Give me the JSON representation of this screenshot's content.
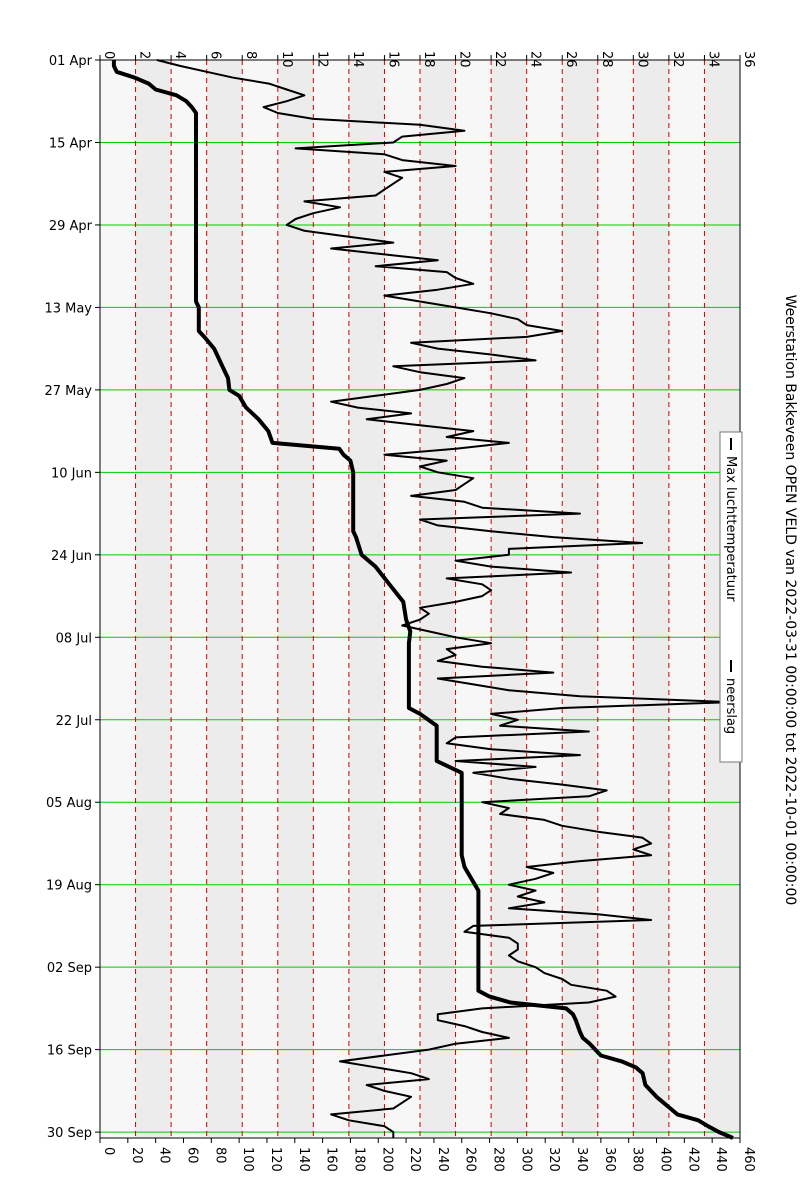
{
  "chart_data": {
    "type": "line",
    "title": "Weerstation Bakkeveen OPEN VELD van 2022-03-31 00:00:00 tot 2022-10-01 00:00:00",
    "orientation": "rotated-90-clockwise",
    "x_axis": {
      "kind": "date",
      "range": [
        "2022-04-01",
        "2022-10-01"
      ],
      "tick_labels": [
        "01 Apr",
        "15 Apr",
        "29 Apr",
        "13 May",
        "27 May",
        "10 Jun",
        "24 Jun",
        "08 Jul",
        "22 Jul",
        "05 Aug",
        "19 Aug",
        "02 Sep",
        "16 Sep",
        "30 Sep"
      ],
      "tick_dates": [
        "2022-04-01",
        "2022-04-15",
        "2022-04-29",
        "2022-05-13",
        "2022-05-27",
        "2022-06-10",
        "2022-06-24",
        "2022-07-08",
        "2022-07-22",
        "2022-08-05",
        "2022-08-19",
        "2022-09-02",
        "2022-09-16",
        "2022-09-30"
      ],
      "grid": true,
      "grid_color": "#00cc00"
    },
    "y_axis_temperature": {
      "range": [
        0,
        36
      ],
      "ticks": [
        0,
        2,
        4,
        6,
        8,
        10,
        12,
        14,
        16,
        18,
        20,
        22,
        24,
        26,
        28,
        30,
        32,
        34,
        36
      ],
      "grid": true,
      "grid_color": "#cc0000",
      "grid_style": "dashed"
    },
    "y_axis_precipitation": {
      "range": [
        0,
        460
      ],
      "ticks": [
        0,
        20,
        40,
        60,
        80,
        100,
        120,
        140,
        160,
        180,
        200,
        220,
        240,
        260,
        280,
        300,
        320,
        340,
        360,
        380,
        400,
        420,
        440,
        460
      ]
    },
    "legend": {
      "placement": "top-right",
      "entries": [
        "Max luchttemperatuur",
        "neerslag"
      ]
    },
    "series": [
      {
        "name": "Max luchttemperatuur",
        "axis": "temperature",
        "color": "#000000",
        "points": [
          [
            "2022-04-01",
            3.2
          ],
          [
            "2022-04-02",
            4.5
          ],
          [
            "2022-04-03",
            6.0
          ],
          [
            "2022-04-04",
            7.5
          ],
          [
            "2022-04-05",
            9.5
          ],
          [
            "2022-04-06",
            10.5
          ],
          [
            "2022-04-07",
            11.5
          ],
          [
            "2022-04-08",
            10.5
          ],
          [
            "2022-04-09",
            9.2
          ],
          [
            "2022-04-10",
            10.0
          ],
          [
            "2022-04-11",
            12.0
          ],
          [
            "2022-04-12",
            18.0
          ],
          [
            "2022-04-13",
            20.5
          ],
          [
            "2022-04-14",
            17.0
          ],
          [
            "2022-04-15",
            16.5
          ],
          [
            "2022-04-16",
            11.0
          ],
          [
            "2022-04-17",
            16.0
          ],
          [
            "2022-04-18",
            17.0
          ],
          [
            "2022-04-19",
            20.0
          ],
          [
            "2022-04-20",
            16.0
          ],
          [
            "2022-04-21",
            17.0
          ],
          [
            "2022-04-22",
            16.5
          ],
          [
            "2022-04-23",
            16.0
          ],
          [
            "2022-04-24",
            15.5
          ],
          [
            "2022-04-25",
            11.5
          ],
          [
            "2022-04-26",
            13.5
          ],
          [
            "2022-04-27",
            12.0
          ],
          [
            "2022-04-28",
            11.0
          ],
          [
            "2022-04-29",
            10.5
          ],
          [
            "2022-04-30",
            11.5
          ],
          [
            "2022-05-01",
            14.0
          ],
          [
            "2022-05-02",
            16.5
          ],
          [
            "2022-05-03",
            13.0
          ],
          [
            "2022-05-04",
            16.0
          ],
          [
            "2022-05-05",
            19.0
          ],
          [
            "2022-05-06",
            15.5
          ],
          [
            "2022-05-07",
            19.5
          ],
          [
            "2022-05-08",
            20.0
          ],
          [
            "2022-05-09",
            21.0
          ],
          [
            "2022-05-10",
            19.0
          ],
          [
            "2022-05-11",
            16.0
          ],
          [
            "2022-05-12",
            18.0
          ],
          [
            "2022-05-13",
            20.0
          ],
          [
            "2022-05-14",
            22.0
          ],
          [
            "2022-05-15",
            23.5
          ],
          [
            "2022-05-16",
            24.0
          ],
          [
            "2022-05-17",
            26.0
          ],
          [
            "2022-05-18",
            24.0
          ],
          [
            "2022-05-19",
            17.5
          ],
          [
            "2022-05-20",
            19.0
          ],
          [
            "2022-05-21",
            22.0
          ],
          [
            "2022-05-22",
            24.5
          ],
          [
            "2022-05-23",
            16.5
          ],
          [
            "2022-05-24",
            18.0
          ],
          [
            "2022-05-25",
            20.5
          ],
          [
            "2022-05-26",
            19.5
          ],
          [
            "2022-05-27",
            18.0
          ],
          [
            "2022-05-28",
            15.5
          ],
          [
            "2022-05-29",
            13.0
          ],
          [
            "2022-05-30",
            14.5
          ],
          [
            "2022-05-31",
            17.5
          ],
          [
            "2022-06-01",
            15.0
          ],
          [
            "2022-06-02",
            18.0
          ],
          [
            "2022-06-03",
            21.0
          ],
          [
            "2022-06-04",
            19.5
          ],
          [
            "2022-06-05",
            23.0
          ],
          [
            "2022-06-06",
            20.0
          ],
          [
            "2022-06-07",
            16.0
          ],
          [
            "2022-06-08",
            19.5
          ],
          [
            "2022-06-09",
            18.0
          ],
          [
            "2022-06-10",
            19.0
          ],
          [
            "2022-06-11",
            21.0
          ],
          [
            "2022-06-12",
            20.5
          ],
          [
            "2022-06-13",
            20.0
          ],
          [
            "2022-06-14",
            17.5
          ],
          [
            "2022-06-15",
            20.5
          ],
          [
            "2022-06-16",
            21.5
          ],
          [
            "2022-06-17",
            27.0
          ],
          [
            "2022-06-18",
            18.0
          ],
          [
            "2022-06-19",
            19.0
          ],
          [
            "2022-06-20",
            22.0
          ],
          [
            "2022-06-21",
            25.5
          ],
          [
            "2022-06-22",
            30.5
          ],
          [
            "2022-06-23",
            23.0
          ],
          [
            "2022-06-24",
            23.0
          ],
          [
            "2022-06-25",
            20.0
          ],
          [
            "2022-06-26",
            22.0
          ],
          [
            "2022-06-27",
            26.5
          ],
          [
            "2022-06-28",
            19.5
          ],
          [
            "2022-06-29",
            21.5
          ],
          [
            "2022-06-30",
            22.0
          ],
          [
            "2022-07-01",
            21.5
          ],
          [
            "2022-07-02",
            20.0
          ],
          [
            "2022-07-03",
            18.0
          ],
          [
            "2022-07-04",
            18.5
          ],
          [
            "2022-07-05",
            18.0
          ],
          [
            "2022-07-06",
            17.0
          ],
          [
            "2022-07-07",
            18.5
          ],
          [
            "2022-07-08",
            20.0
          ],
          [
            "2022-07-09",
            22.0
          ],
          [
            "2022-07-10",
            19.5
          ],
          [
            "2022-07-11",
            20.0
          ],
          [
            "2022-07-12",
            19.0
          ],
          [
            "2022-07-13",
            21.5
          ],
          [
            "2022-07-14",
            25.5
          ],
          [
            "2022-07-15",
            19.0
          ],
          [
            "2022-07-16",
            21.0
          ],
          [
            "2022-07-17",
            23.0
          ],
          [
            "2022-07-18",
            27.0
          ],
          [
            "2022-07-19",
            35.5
          ],
          [
            "2022-07-20",
            26.0
          ],
          [
            "2022-07-21",
            22.0
          ],
          [
            "2022-07-22",
            23.5
          ],
          [
            "2022-07-23",
            22.5
          ],
          [
            "2022-07-24",
            27.5
          ],
          [
            "2022-07-25",
            20.0
          ],
          [
            "2022-07-26",
            19.5
          ],
          [
            "2022-07-27",
            22.0
          ],
          [
            "2022-07-28",
            27.0
          ],
          [
            "2022-07-29",
            20.0
          ],
          [
            "2022-07-30",
            24.5
          ],
          [
            "2022-07-31",
            21.0
          ],
          [
            "2022-08-01",
            23.0
          ],
          [
            "2022-08-02",
            26.0
          ],
          [
            "2022-08-03",
            28.5
          ],
          [
            "2022-08-04",
            27.5
          ],
          [
            "2022-08-05",
            21.5
          ],
          [
            "2022-08-06",
            23.0
          ],
          [
            "2022-08-07",
            22.5
          ],
          [
            "2022-08-08",
            25.0
          ],
          [
            "2022-08-09",
            26.0
          ],
          [
            "2022-08-10",
            28.0
          ],
          [
            "2022-08-11",
            30.5
          ],
          [
            "2022-08-12",
            31.0
          ],
          [
            "2022-08-13",
            30.0
          ],
          [
            "2022-08-14",
            31.0
          ],
          [
            "2022-08-15",
            27.0
          ],
          [
            "2022-08-16",
            24.0
          ],
          [
            "2022-08-17",
            25.5
          ],
          [
            "2022-08-18",
            24.5
          ],
          [
            "2022-08-19",
            23.0
          ],
          [
            "2022-08-20",
            24.5
          ],
          [
            "2022-08-21",
            23.5
          ],
          [
            "2022-08-22",
            25.0
          ],
          [
            "2022-08-23",
            23.0
          ],
          [
            "2022-08-24",
            28.0
          ],
          [
            "2022-08-25",
            31.0
          ],
          [
            "2022-08-26",
            21.0
          ],
          [
            "2022-08-27",
            20.5
          ],
          [
            "2022-08-28",
            23.0
          ],
          [
            "2022-08-29",
            23.5
          ],
          [
            "2022-08-30",
            23.5
          ],
          [
            "2022-08-31",
            23.0
          ],
          [
            "2022-09-01",
            23.5
          ],
          [
            "2022-09-02",
            24.5
          ],
          [
            "2022-09-03",
            25.0
          ],
          [
            "2022-09-04",
            26.0
          ],
          [
            "2022-09-05",
            26.5
          ],
          [
            "2022-09-06",
            28.5
          ],
          [
            "2022-09-07",
            29.0
          ],
          [
            "2022-09-08",
            27.5
          ],
          [
            "2022-09-09",
            21.5
          ],
          [
            "2022-09-10",
            19.0
          ],
          [
            "2022-09-11",
            19.0
          ],
          [
            "2022-09-12",
            20.5
          ],
          [
            "2022-09-13",
            21.5
          ],
          [
            "2022-09-14",
            23.0
          ],
          [
            "2022-09-15",
            20.0
          ],
          [
            "2022-09-16",
            18.5
          ],
          [
            "2022-09-17",
            16.0
          ],
          [
            "2022-09-18",
            13.5
          ],
          [
            "2022-09-19",
            15.5
          ],
          [
            "2022-09-20",
            17.5
          ],
          [
            "2022-09-21",
            18.5
          ],
          [
            "2022-09-22",
            15.0
          ],
          [
            "2022-09-23",
            16.0
          ],
          [
            "2022-09-24",
            17.5
          ],
          [
            "2022-09-25",
            17.0
          ],
          [
            "2022-09-26",
            16.5
          ],
          [
            "2022-09-27",
            13.0
          ],
          [
            "2022-09-28",
            14.0
          ],
          [
            "2022-09-29",
            16.0
          ],
          [
            "2022-09-30",
            16.5
          ],
          [
            "2022-10-01",
            16.5
          ]
        ]
      },
      {
        "name": "neerslag",
        "axis": "precipitation",
        "color": "#000000",
        "points": [
          [
            "2022-04-01",
            10
          ],
          [
            "2022-04-02",
            10
          ],
          [
            "2022-04-03",
            12
          ],
          [
            "2022-04-04",
            25
          ],
          [
            "2022-04-05",
            35
          ],
          [
            "2022-04-06",
            40
          ],
          [
            "2022-04-07",
            55
          ],
          [
            "2022-04-08",
            62
          ],
          [
            "2022-04-09",
            66
          ],
          [
            "2022-04-10",
            69
          ],
          [
            "2022-04-11",
            69
          ],
          [
            "2022-04-15",
            69
          ],
          [
            "2022-04-29",
            69
          ],
          [
            "2022-05-12",
            69
          ],
          [
            "2022-05-13",
            71
          ],
          [
            "2022-05-15",
            71
          ],
          [
            "2022-05-17",
            71
          ],
          [
            "2022-05-18",
            75
          ],
          [
            "2022-05-20",
            82
          ],
          [
            "2022-05-21",
            84
          ],
          [
            "2022-05-23",
            88
          ],
          [
            "2022-05-25",
            92
          ],
          [
            "2022-05-27",
            93
          ],
          [
            "2022-05-28",
            100
          ],
          [
            "2022-05-30",
            105
          ],
          [
            "2022-06-01",
            114
          ],
          [
            "2022-06-03",
            121
          ],
          [
            "2022-06-05",
            124
          ],
          [
            "2022-06-06",
            172
          ],
          [
            "2022-06-07",
            175
          ],
          [
            "2022-06-08",
            180
          ],
          [
            "2022-06-10",
            182
          ],
          [
            "2022-06-20",
            182
          ],
          [
            "2022-06-21",
            184
          ],
          [
            "2022-06-24",
            188
          ],
          [
            "2022-06-26",
            198
          ],
          [
            "2022-06-29",
            208
          ],
          [
            "2022-07-02",
            218
          ],
          [
            "2022-07-05",
            220
          ],
          [
            "2022-07-07",
            223
          ],
          [
            "2022-07-09",
            222
          ],
          [
            "2022-07-20",
            222
          ],
          [
            "2022-07-21",
            230
          ],
          [
            "2022-07-23",
            242
          ],
          [
            "2022-07-29",
            242
          ],
          [
            "2022-07-31",
            260
          ],
          [
            "2022-08-14",
            260
          ],
          [
            "2022-08-16",
            262
          ],
          [
            "2022-08-20",
            272
          ],
          [
            "2022-09-06",
            272
          ],
          [
            "2022-09-07",
            280
          ],
          [
            "2022-09-08",
            295
          ],
          [
            "2022-09-09",
            335
          ],
          [
            "2022-09-10",
            340
          ],
          [
            "2022-09-11",
            342
          ],
          [
            "2022-09-13",
            345
          ],
          [
            "2022-09-14",
            347
          ],
          [
            "2022-09-15",
            352
          ],
          [
            "2022-09-16",
            356
          ],
          [
            "2022-09-17",
            360
          ],
          [
            "2022-09-18",
            375
          ],
          [
            "2022-09-19",
            385
          ],
          [
            "2022-09-20",
            390
          ],
          [
            "2022-09-22",
            392
          ],
          [
            "2022-09-24",
            400
          ],
          [
            "2022-09-26",
            410
          ],
          [
            "2022-09-27",
            415
          ],
          [
            "2022-09-28",
            430
          ],
          [
            "2022-09-29",
            437
          ],
          [
            "2022-09-30",
            445
          ],
          [
            "2022-10-01",
            455
          ]
        ]
      }
    ]
  }
}
